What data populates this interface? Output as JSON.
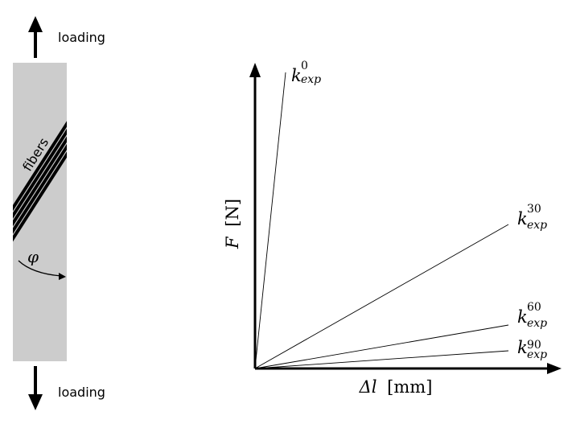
{
  "specimen": {
    "load_top": "loading",
    "load_bottom": "loading",
    "fiber_label": "fibers",
    "angle_symbol": "φ",
    "fiber_count": 5
  },
  "plot": {
    "y_label_symbol": "F",
    "y_label_unit": "[N]",
    "x_label_symbol": "Δl",
    "x_label_unit": "[mm]",
    "lines": [
      {
        "base": "k",
        "sup": "0",
        "sub": "exp"
      },
      {
        "base": "k",
        "sup": "30",
        "sub": "exp"
      },
      {
        "base": "k",
        "sup": "60",
        "sub": "exp"
      },
      {
        "base": "k",
        "sup": "90",
        "sub": "exp"
      }
    ]
  },
  "colors": {
    "specimen_fill": "#cccccc",
    "ink": "#000000",
    "background": "#ffffff"
  }
}
